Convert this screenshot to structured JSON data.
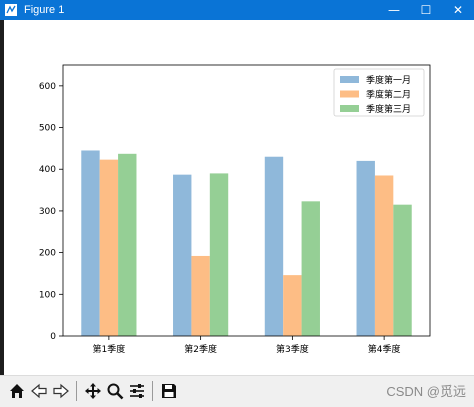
{
  "window": {
    "title": "Figure 1",
    "controls": {
      "minimize": "—",
      "maximize": "☐",
      "close": "✕"
    }
  },
  "toolbar": {
    "buttons": [
      {
        "name": "home-icon"
      },
      {
        "name": "back-arrow-icon"
      },
      {
        "name": "forward-arrow-icon"
      },
      {
        "name": "pan-icon"
      },
      {
        "name": "zoom-icon"
      },
      {
        "name": "configure-subplots-icon"
      },
      {
        "name": "save-icon"
      }
    ]
  },
  "watermark": "CSDN @觅远",
  "colors": {
    "titlebar": "#0a74d6",
    "series": [
      "#8fb8da",
      "#fdbd85",
      "#95cf95"
    ]
  },
  "chart_data": {
    "type": "bar",
    "categories": [
      "第1季度",
      "第2季度",
      "第3季度",
      "第4季度"
    ],
    "series": [
      {
        "name": "季度第一月",
        "values": [
          445,
          387,
          430,
          420
        ]
      },
      {
        "name": "季度第二月",
        "values": [
          423,
          192,
          146,
          385
        ]
      },
      {
        "name": "季度第三月",
        "values": [
          437,
          390,
          323,
          315
        ]
      }
    ],
    "yticks": [
      0,
      100,
      200,
      300,
      400,
      500,
      600
    ],
    "ylim": [
      0,
      650
    ],
    "grid": false,
    "legend_position": "top-right"
  }
}
